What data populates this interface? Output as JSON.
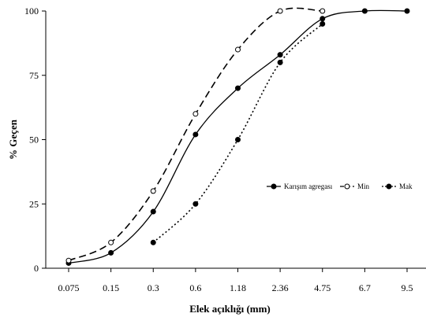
{
  "chart_data": {
    "type": "line",
    "title": "",
    "xlabel": "Elek açıklığı (mm)",
    "ylabel": "% Geçen",
    "categories": [
      "0.075",
      "0.15",
      "0.3",
      "0.6",
      "1.18",
      "2.36",
      "4.75",
      "6.7",
      "9.5"
    ],
    "ylim": [
      0,
      100
    ],
    "yticks": [
      "0",
      "25",
      "50",
      "75",
      "100"
    ],
    "grid": false,
    "legend_position": "right",
    "series": [
      {
        "name": "Karışım agregası",
        "style": "solid",
        "marker": "filled-circle",
        "color": "#000000",
        "points": [
          [
            0,
            2
          ],
          [
            1,
            6
          ],
          [
            2,
            22
          ],
          [
            3,
            52
          ],
          [
            4,
            70
          ],
          [
            5,
            83
          ],
          [
            6,
            97
          ],
          [
            7,
            100
          ],
          [
            8,
            100
          ]
        ]
      },
      {
        "name": "Min",
        "style": "dashed",
        "marker": "open-circle",
        "color": "#000000",
        "points": [
          [
            0,
            3
          ],
          [
            1,
            10
          ],
          [
            2,
            30
          ],
          [
            3,
            60
          ],
          [
            4,
            85
          ],
          [
            5,
            100
          ],
          [
            6,
            100
          ]
        ]
      },
      {
        "name": "Mak",
        "style": "dotted",
        "marker": "filled-circle",
        "color": "#000000",
        "points": [
          [
            2,
            10
          ],
          [
            3,
            25
          ],
          [
            4,
            50
          ],
          [
            5,
            80
          ],
          [
            6,
            95
          ]
        ]
      }
    ]
  }
}
